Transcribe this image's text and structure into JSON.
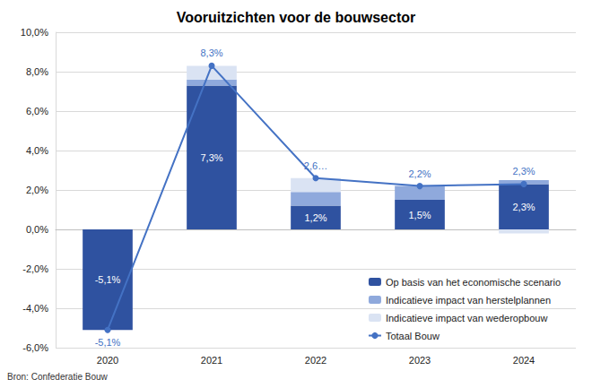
{
  "chart_data": {
    "type": "bar",
    "title": "Vooruitzichten voor de bouwsector",
    "source": "Bron: Confederatie Bouw",
    "categories": [
      "2020",
      "2021",
      "2022",
      "2023",
      "2024"
    ],
    "stacked": true,
    "grid": true,
    "legend": "lower right",
    "ylim": [
      -6,
      10
    ],
    "yticks": [
      {
        "value": -6,
        "label": "-6,0%"
      },
      {
        "value": -4,
        "label": "-4,0%"
      },
      {
        "value": -2,
        "label": "-2,0%"
      },
      {
        "value": 0,
        "label": "0,0%"
      },
      {
        "value": 2,
        "label": "2,0%"
      },
      {
        "value": 4,
        "label": "4,0%"
      },
      {
        "value": 6,
        "label": "6,0%"
      },
      {
        "value": 8,
        "label": "8,0%"
      },
      {
        "value": 10,
        "label": "10,0%"
      }
    ],
    "series": [
      {
        "name": "Op basis van het economische scenario",
        "type": "bar",
        "color": "#2f52a0",
        "values": [
          -5.1,
          7.3,
          1.2,
          1.5,
          2.3
        ],
        "data_labels": true,
        "value_labels": [
          "-5,1%",
          "7,3%",
          "1,2%",
          "1,5%",
          "2,3%"
        ]
      },
      {
        "name": "Indicatieve impact van herstelplannen",
        "type": "bar",
        "color": "#8fa9dc",
        "values": [
          0,
          0.3,
          0.7,
          0.7,
          0.2
        ]
      },
      {
        "name": "Indicatieve impact van wederopbouw",
        "type": "bar",
        "color": "#dae3f3",
        "values": [
          0,
          0.7,
          0.7,
          0,
          -0.2
        ]
      },
      {
        "name": "Totaal Bouw",
        "type": "line",
        "color": "#4472c4",
        "marker": "circle",
        "values": [
          -5.1,
          8.3,
          2.6,
          2.2,
          2.3
        ],
        "data_labels": true,
        "value_labels": [
          "-5,1%",
          "8,3%",
          "2,6…",
          "2,2%",
          "2,3%"
        ]
      }
    ]
  }
}
